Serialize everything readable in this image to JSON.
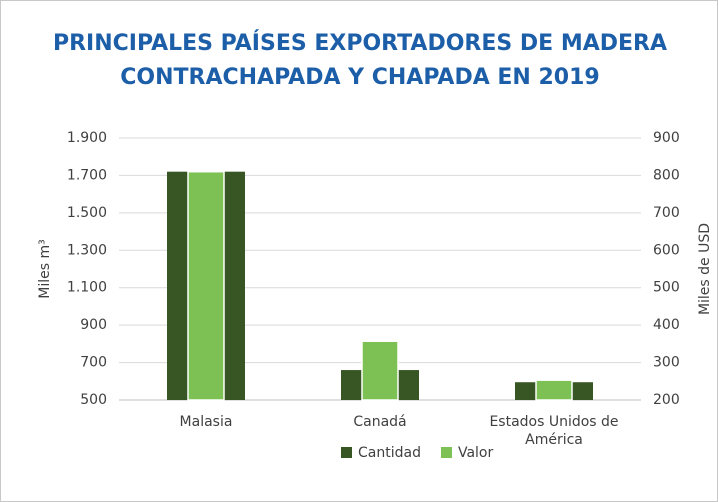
{
  "chart_data": {
    "type": "bar",
    "title": "PRINCIPALES PAÍSES EXPORTADORES DE MADERA CONTRACHAPADA Y CHAPADA EN 2019",
    "categories": [
      "Malasia",
      "Canadá",
      "Estados Unidos de América"
    ],
    "series": [
      {
        "name": "Cantidad",
        "color": "#375623",
        "values": [
          1720,
          660,
          595
        ]
      },
      {
        "name": "Valor",
        "color": "#7dc154",
        "values": [
          810,
          357,
          253
        ],
        "axis": "y2"
      }
    ],
    "ylabel": "Miles m³",
    "y2label": "Miles de USD",
    "ylim": [
      500,
      1900
    ],
    "yticks": [
      500,
      700,
      900,
      {
        "value": 1100,
        "label": "1.100"
      },
      {
        "value": 1300,
        "label": "1.300"
      },
      {
        "value": 1500,
        "label": "1.500"
      },
      {
        "value": 1700,
        "label": "1.700"
      },
      {
        "value": 1900,
        "label": "1.900"
      }
    ],
    "y2lim": [
      200,
      900
    ],
    "y2ticks": [
      200,
      300,
      400,
      500,
      600,
      700,
      800,
      900
    ],
    "grid": true,
    "legend": "bottom"
  }
}
